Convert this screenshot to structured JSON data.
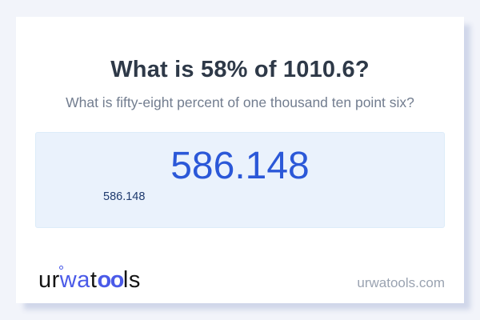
{
  "page": {
    "background_color": "#f2f4fa",
    "card_color": "#ffffff"
  },
  "card": {
    "title": "What is 58% of 1010.6?",
    "subtitle": "What is fifty-eight percent of one thousand ten point six?",
    "answer": {
      "primary_value": "586.148",
      "secondary_value": "586.148",
      "primary_color": "#2b58d8",
      "secondary_color": "#1e3a6e",
      "box_background": "#eaf2fc",
      "box_border": "#dcecf9"
    }
  },
  "footer": {
    "logo": {
      "full_text": "urwatools",
      "seg_ur": "ur",
      "seg_wa": "wa",
      "seg_t": "t",
      "seg_oo": "oo",
      "seg_ls": "ls",
      "accent_color": "#4a5ae8",
      "dark_color": "#141414"
    },
    "website": "urwatools.com"
  }
}
